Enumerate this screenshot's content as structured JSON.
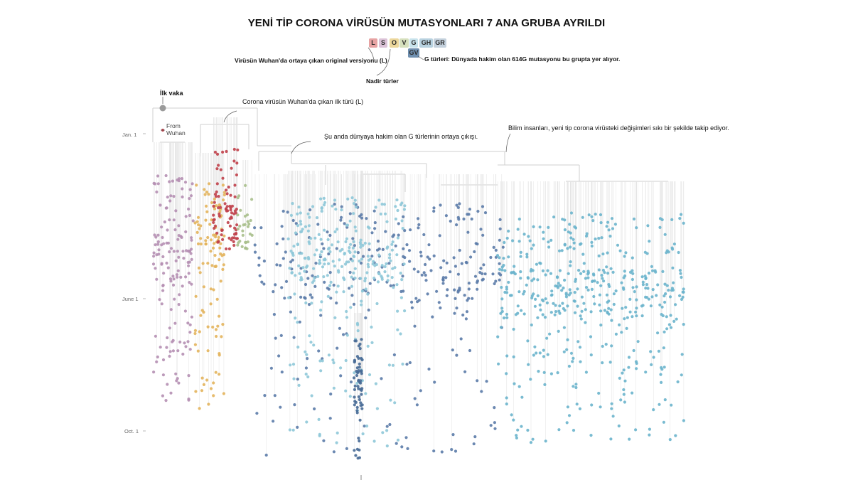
{
  "title": "YENİ TİP CORONA VİRÜSÜN MUTASYONLARI 7 ANA GRUBA AYRILDI",
  "legend": {
    "clades": [
      {
        "label": "L",
        "color": "#e7a3a3"
      },
      {
        "label": "S",
        "color": "#dcc3d8"
      },
      {
        "label": "O",
        "color": "#ecd79c"
      },
      {
        "label": "V",
        "color": "#d6e0bd"
      },
      {
        "label": "G",
        "color": "#c8e3ec"
      },
      {
        "label": "GH",
        "color": "#b8d2e0"
      },
      {
        "label": "GR",
        "color": "#c4d1dd"
      },
      {
        "label": "GV",
        "color": "#6f8faf"
      }
    ],
    "note_l": "Virüsün Wuhan'da ortaya çıkan original versiyonu (L)",
    "note_rare": "Nadir türler",
    "note_g": "G türleri: Dünyada hakim olan 614G mutasyonu bu grupta yer alıyor."
  },
  "annotations": {
    "first_case": "İlk vaka",
    "from_wuhan": "From Wuhan",
    "first_type": "Corona virüsün Wuhan'da çıkan ilk türü (L)",
    "g_emergence": "Şu anda dünyaya hakim olan G türlerinin ortaya çıkışı.",
    "scientists": "Bilim insanları, yeni tip corona virüsteki değişimleri sıkı bir şekilde takip ediyor."
  },
  "chart_data": {
    "type": "scatter",
    "title": "YENİ TİP CORONA VİRÜSÜN MUTASYONLARI 7 ANA GRUBA AYRILDI",
    "y_axis": {
      "ticks": [
        "Jan. 1",
        "June 1",
        "Oct. 1"
      ],
      "direction": "time increases downward"
    },
    "x_axis": {
      "label": "",
      "meaning": "phylogenetic tree branch order (unlabeled)"
    },
    "grid": false,
    "description_of_marks": "Each dot is a sequenced virus sample placed by collection date; thin grey lines connect samples to the phylogenetic tree at top.",
    "clusters": [
      {
        "clade": "S",
        "color": "#b58fb3",
        "approx_samples": 150,
        "date_range": [
          "Jan. 1",
          "Sept."
        ]
      },
      {
        "clade": "O",
        "color": "#e3b45c",
        "approx_samples": 110,
        "date_range": [
          "Feb.",
          "Sept."
        ]
      },
      {
        "clade": "L",
        "color": "#c0404a",
        "approx_samples": 80,
        "date_range": [
          "Jan. 1",
          "Apr."
        ]
      },
      {
        "clade": "V",
        "color": "#a8bf8c",
        "approx_samples": 30,
        "date_range": [
          "Feb.",
          "Apr."
        ]
      },
      {
        "clade": "GR",
        "color": "#5b7ba8",
        "approx_samples": 320,
        "date_range": [
          "Feb.",
          "Oct."
        ]
      },
      {
        "clade": "G",
        "color": "#8ec8d8",
        "approx_samples": 300,
        "date_range": [
          "Feb.",
          "Oct."
        ]
      },
      {
        "clade": "GV",
        "color": "#476a96",
        "approx_samples": 60,
        "date_range": [
          "May",
          "Oct."
        ]
      },
      {
        "clade": "GH",
        "color": "#6ab4cc",
        "approx_samples": 480,
        "date_range": [
          "Mar.",
          "Oct."
        ]
      }
    ]
  }
}
